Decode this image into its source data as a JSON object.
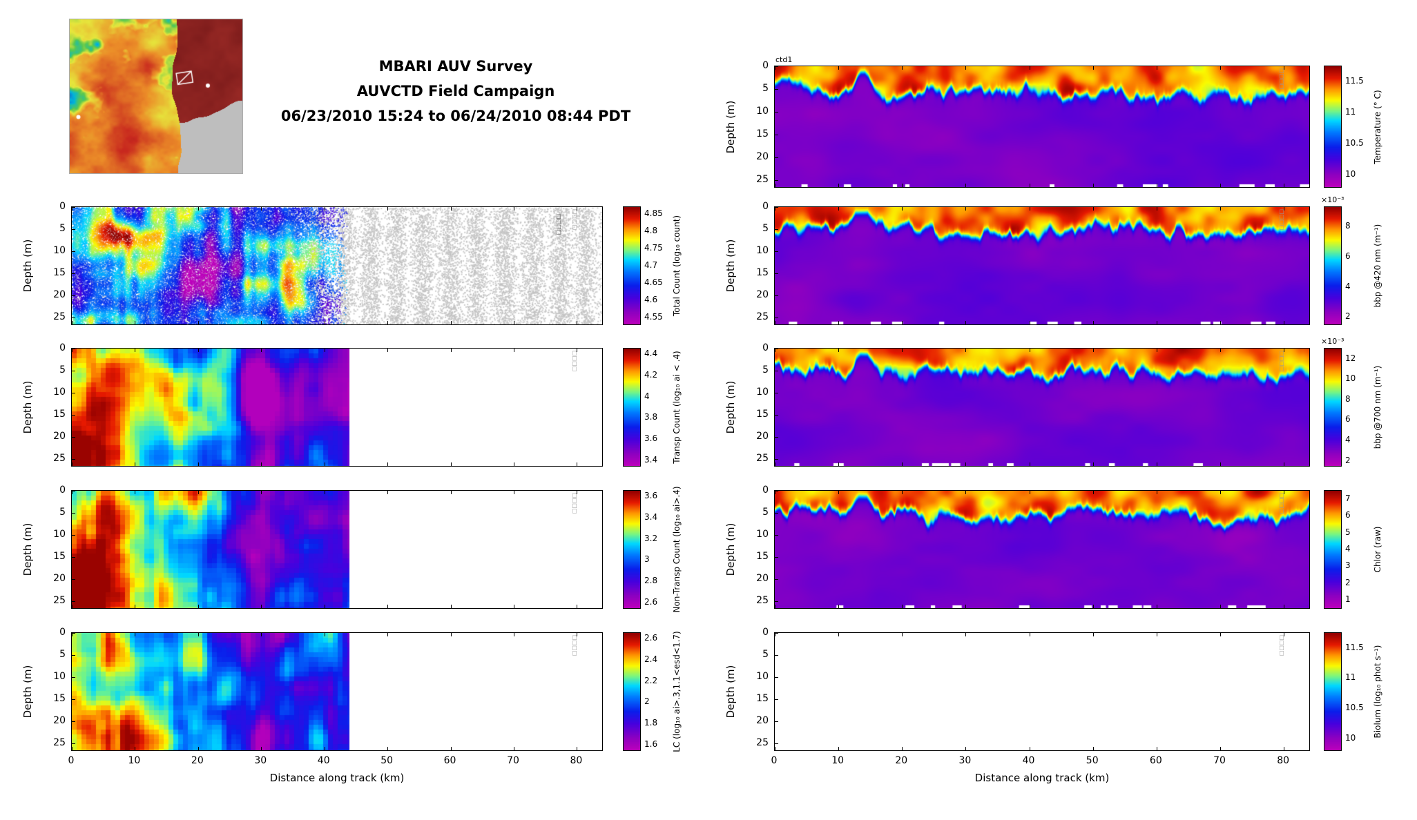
{
  "title": {
    "line1": "MBARI AUV Survey",
    "line2": "AUVCTD Field Campaign",
    "line3": "06/23/2010 15:24 to 06/24/2010 08:44 PDT"
  },
  "chart_data": {
    "type": "heatmap",
    "description": "AUV depth-section plots versus distance along track. Left column: particle count sections; right column: CTD and optical sensor sections. All fields rendered with a jet-style colormap with magenta at the low end.",
    "x_axis": {
      "label": "Distance along track (km)",
      "range": [
        0,
        84
      ],
      "ticks": [
        0,
        10,
        20,
        30,
        40,
        50,
        60,
        70,
        80
      ]
    },
    "y_axis": {
      "label": "Depth (m)",
      "range": [
        0,
        26.5
      ],
      "ticks": [
        0,
        5,
        10,
        15,
        20,
        25
      ]
    },
    "corner_marks": "□□□□",
    "columns": [
      {
        "id": "left",
        "panels": [
          {
            "id": "total-count",
            "colorbar_label": "Total Count (log₁₀ count)",
            "colorbar_ticks": [
              4.55,
              4.6,
              4.65,
              4.7,
              4.75,
              4.8,
              4.85
            ],
            "colorbar_range": [
              4.53,
              4.87
            ],
            "field": "speckle",
            "extent_km": 84,
            "seed": 21
          },
          {
            "id": "transp-count",
            "colorbar_label": "Transp Count (log₁₀ ai < .4)",
            "colorbar_ticks": [
              3.4,
              3.6,
              3.8,
              4,
              4.2,
              4.4
            ],
            "colorbar_range": [
              3.35,
              4.45
            ],
            "field": "blocky",
            "extent_km": 44,
            "seed": 7
          },
          {
            "id": "non-transp-count",
            "colorbar_label": "Non-Transp Count (log₁₀ ai>.4)",
            "colorbar_ticks": [
              2.6,
              2.8,
              3,
              3.2,
              3.4,
              3.6
            ],
            "colorbar_range": [
              2.55,
              3.65
            ],
            "field": "blocky",
            "extent_km": 44,
            "seed": 11
          },
          {
            "id": "lc",
            "colorbar_label": "LC (log₁₀ ai>.3,1.1<esd<1.7)",
            "colorbar_ticks": [
              1.6,
              1.8,
              2,
              2.2,
              2.4,
              2.6
            ],
            "colorbar_range": [
              1.55,
              2.65
            ],
            "field": "blocky",
            "extent_km": 44,
            "seed": 13
          }
        ]
      },
      {
        "id": "right",
        "panels": [
          {
            "id": "temperature",
            "title": "ctd1",
            "colorbar_label": "Temperature (° C)",
            "colorbar_ticks": [
              10,
              10.5,
              11,
              11.5
            ],
            "colorbar_range": [
              9.8,
              11.75
            ],
            "field": "section",
            "extent_km": 84,
            "seed": 3
          },
          {
            "id": "bbp420",
            "colorbar_label": "bbp @420 nm (m⁻¹)",
            "multiplier": "×10⁻³",
            "colorbar_ticks": [
              2,
              4,
              6,
              8
            ],
            "colorbar_range": [
              1.5,
              9.3
            ],
            "field": "section",
            "extent_km": 84,
            "seed": 5
          },
          {
            "id": "bbp700",
            "colorbar_label": "bbp @700 nm (m⁻¹)",
            "multiplier": "×10⁻³",
            "colorbar_ticks": [
              2,
              4,
              6,
              8,
              10,
              12
            ],
            "colorbar_range": [
              1.5,
              13
            ],
            "field": "section",
            "extent_km": 84,
            "seed": 9
          },
          {
            "id": "chlor",
            "colorbar_label": "Chlor (raw)",
            "colorbar_ticks": [
              1,
              2,
              3,
              4,
              5,
              6,
              7
            ],
            "colorbar_range": [
              0.5,
              7.5
            ],
            "field": "section",
            "extent_km": 84,
            "seed": 15
          },
          {
            "id": "biolum",
            "colorbar_label": "Biolum (log₁₀ phot s⁻¹)",
            "colorbar_ticks": [
              10,
              10.5,
              11,
              11.5
            ],
            "colorbar_range": [
              9.8,
              11.75
            ],
            "field": "empty",
            "extent_km": 84,
            "seed": 1
          }
        ]
      }
    ]
  }
}
